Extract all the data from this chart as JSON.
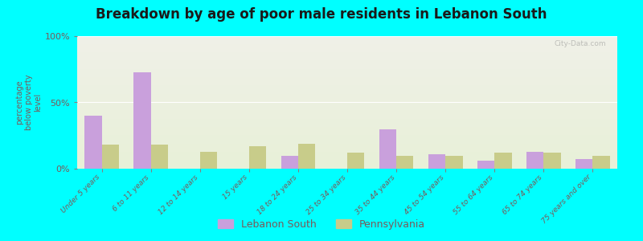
{
  "title": "Breakdown by age of poor male residents in Lebanon South",
  "ylabel": "percentage\nbelow poverty\nlevel",
  "categories": [
    "Under 5 years",
    "6 to 11 years",
    "12 to 14 years",
    "15 years",
    "18 to 24 years",
    "25 to 34 years",
    "35 to 44 years",
    "45 to 54 years",
    "55 to 64 years",
    "65 to 74 years",
    "75 years and over"
  ],
  "lebanon_south": [
    40,
    73,
    0,
    0,
    10,
    0,
    30,
    11,
    6,
    13,
    7
  ],
  "pennsylvania": [
    18,
    18,
    13,
    17,
    19,
    12,
    10,
    10,
    12,
    12,
    10
  ],
  "lebanon_color": "#c9a0dc",
  "pennsylvania_color": "#c8cc8a",
  "bg_color": "#00ffff",
  "plot_bg_top": "#f0f0e8",
  "plot_bg_bottom": "#e8f0d8",
  "title_color": "#1a1a1a",
  "axis_label_color": "#7a5a5a",
  "tick_label_color": "#7a5a5a",
  "ylim": [
    0,
    100
  ],
  "yticks": [
    0,
    50,
    100
  ],
  "ytick_labels": [
    "0%",
    "50%",
    "100%"
  ],
  "bar_width": 0.35,
  "legend_labels": [
    "Lebanon South",
    "Pennsylvania"
  ],
  "watermark": "City-Data.com"
}
